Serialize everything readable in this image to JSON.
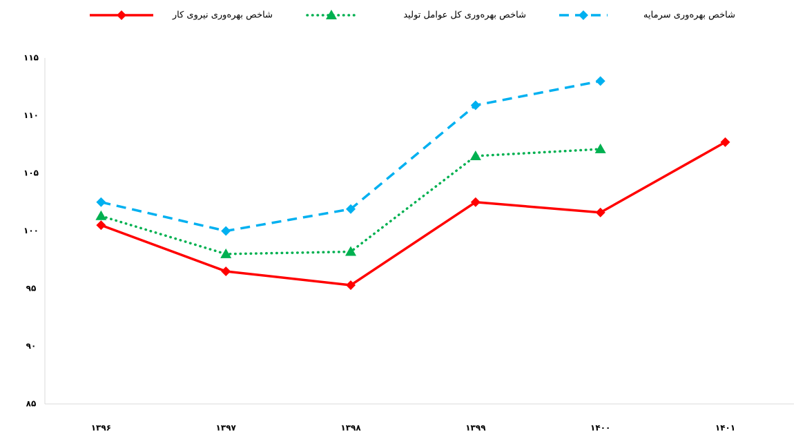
{
  "chart_data": {
    "type": "line",
    "categories": [
      "۱۳۹۶",
      "۱۳۹۷",
      "۱۳۹۸",
      "۱۳۹۹",
      "۱۴۰۰",
      "۱۴۰۱"
    ],
    "series": [
      {
        "name": "شاخص بهره‌وری نیروی کار",
        "color": "#ff0000",
        "dash": "solid",
        "marker": "diamond",
        "values": [
          100.5,
          96.5,
          95.3,
          102.5,
          101.6,
          107.7
        ]
      },
      {
        "name": "شاخص بهره‌وری کل عوامل تولید",
        "color": "#00b050",
        "dash": "dotted",
        "marker": "triangle",
        "values": [
          101.3,
          98.0,
          98.2,
          106.5,
          107.1,
          null
        ]
      },
      {
        "name": "شاخص بهره‌وری سرمایه",
        "color": "#00b0f0",
        "dash": "dashed",
        "marker": "diamond",
        "values": [
          102.5,
          100.0,
          101.9,
          110.9,
          113.0,
          null
        ]
      }
    ],
    "ylim": [
      85,
      115
    ],
    "yticks": [
      {
        "value": 85,
        "label": "۸۵"
      },
      {
        "value": 90,
        "label": "۹۰"
      },
      {
        "value": 95,
        "label": "۹۵"
      },
      {
        "value": 100,
        "label": "۱۰۰"
      },
      {
        "value": 105,
        "label": "۱۰۵"
      },
      {
        "value": 110,
        "label": "۱۱۰"
      },
      {
        "value": 115,
        "label": "۱۱۵"
      }
    ],
    "grid": false,
    "legend": "top"
  }
}
